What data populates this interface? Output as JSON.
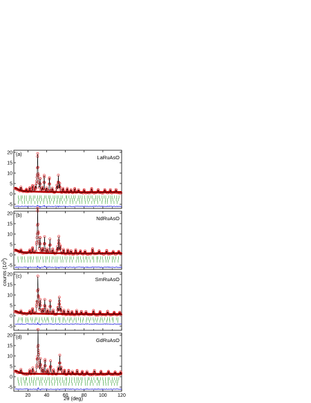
{
  "figure": {
    "xlabel": "2θ (deg)",
    "ylabel": "counts (10",
    "ylabel_exp": "3",
    "ylabel_close": ")",
    "xticks": [
      20,
      40,
      60,
      80,
      100,
      120
    ],
    "yticks": [
      -5,
      0,
      5,
      10,
      15,
      20
    ],
    "xlim": [
      5,
      120
    ],
    "ylim": [
      -7,
      21
    ],
    "colors": {
      "observed": "#e8282c",
      "calculated": "#000000",
      "fit_line": "#b40000",
      "reflections": "#2e9b2e",
      "difference": "#1a1ad8",
      "frame": "#000000"
    }
  },
  "chart_data": [
    {
      "type": "scatter",
      "panel": "(a)",
      "compound": "LaRuAsO",
      "xlim": [
        5,
        120
      ],
      "ylim": [
        -7,
        21
      ],
      "xlabel": "",
      "ylabel": "counts (10^3)",
      "background": [
        [
          7,
          2.6
        ],
        [
          12,
          1.3
        ],
        [
          20,
          0.9
        ],
        [
          40,
          0.6
        ],
        [
          80,
          0.5
        ],
        [
          120,
          0.6
        ]
      ],
      "peaks": [
        {
          "x": 12.6,
          "y": 2.0
        },
        {
          "x": 18.4,
          "y": 1.2
        },
        {
          "x": 22.0,
          "y": 2.0
        },
        {
          "x": 25.0,
          "y": 3.0
        },
        {
          "x": 28.0,
          "y": 2.5
        },
        {
          "x": 29.6,
          "y": 4.0
        },
        {
          "x": 30.4,
          "y": 17.0
        },
        {
          "x": 31.2,
          "y": 5.0
        },
        {
          "x": 33.0,
          "y": 6.0
        },
        {
          "x": 35.5,
          "y": 2.0
        },
        {
          "x": 37.4,
          "y": 8.0
        },
        {
          "x": 40.0,
          "y": 2.0
        },
        {
          "x": 43.0,
          "y": 7.0
        },
        {
          "x": 46.0,
          "y": 2.0
        },
        {
          "x": 51.0,
          "y": 3.0
        },
        {
          "x": 52.5,
          "y": 8.0
        },
        {
          "x": 54.0,
          "y": 4.0
        },
        {
          "x": 57.5,
          "y": 2.0
        },
        {
          "x": 62.0,
          "y": 2.0
        },
        {
          "x": 66.0,
          "y": 1.5
        },
        {
          "x": 70.0,
          "y": 2.0
        },
        {
          "x": 74.0,
          "y": 1.5
        },
        {
          "x": 80.0,
          "y": 1.5
        },
        {
          "x": 88.0,
          "y": 2.0
        },
        {
          "x": 95.0,
          "y": 1.5
        },
        {
          "x": 102.0,
          "y": 1.5
        },
        {
          "x": 108.0,
          "y": 1.5
        },
        {
          "x": 114.0,
          "y": 1.5
        }
      ],
      "reflection_rows": [
        {
          "y": -1.5,
          "count": 48
        },
        {
          "y": -2.8,
          "count": 40
        },
        {
          "y": -4.1,
          "count": 32
        }
      ],
      "difference_baseline": -6.0,
      "difference_spikes": [
        [
          30.4,
          0.5
        ],
        [
          33.0,
          -0.4
        ],
        [
          37.4,
          0.4
        ],
        [
          52.5,
          -0.4
        ]
      ]
    },
    {
      "type": "scatter",
      "panel": "(b)",
      "compound": "NdRuAsO",
      "xlim": [
        5,
        120
      ],
      "ylim": [
        -7,
        21
      ],
      "xlabel": "",
      "ylabel": "counts (10^3)",
      "background": [
        [
          7,
          2.2
        ],
        [
          12,
          1.0
        ],
        [
          20,
          0.8
        ],
        [
          40,
          0.5
        ],
        [
          80,
          0.4
        ],
        [
          120,
          0.5
        ]
      ],
      "peaks": [
        {
          "x": 12.6,
          "y": 1.5
        },
        {
          "x": 22.0,
          "y": 1.5
        },
        {
          "x": 25.0,
          "y": 2.5
        },
        {
          "x": 29.6,
          "y": 4.0
        },
        {
          "x": 30.4,
          "y": 20.0
        },
        {
          "x": 31.2,
          "y": 6.0
        },
        {
          "x": 33.0,
          "y": 7.0
        },
        {
          "x": 35.5,
          "y": 2.0
        },
        {
          "x": 37.8,
          "y": 8.0
        },
        {
          "x": 40.5,
          "y": 2.0
        },
        {
          "x": 43.5,
          "y": 7.0
        },
        {
          "x": 46.5,
          "y": 2.0
        },
        {
          "x": 51.5,
          "y": 3.0
        },
        {
          "x": 53.0,
          "y": 8.0
        },
        {
          "x": 54.5,
          "y": 3.5
        },
        {
          "x": 58.0,
          "y": 2.0
        },
        {
          "x": 62.5,
          "y": 2.0
        },
        {
          "x": 66.0,
          "y": 1.5
        },
        {
          "x": 71.0,
          "y": 2.0
        },
        {
          "x": 76.0,
          "y": 1.5
        },
        {
          "x": 81.0,
          "y": 1.5
        },
        {
          "x": 89.0,
          "y": 2.5
        },
        {
          "x": 96.0,
          "y": 1.5
        },
        {
          "x": 104.0,
          "y": 1.5
        },
        {
          "x": 111.0,
          "y": 1.2
        },
        {
          "x": 117.0,
          "y": 1.2
        }
      ],
      "reflection_rows": [
        {
          "y": -1.5,
          "count": 46
        },
        {
          "y": -3.0,
          "count": 34
        }
      ],
      "difference_baseline": -6.0,
      "difference_spikes": [
        [
          30.4,
          0.6
        ],
        [
          33.0,
          -0.4
        ],
        [
          37.8,
          0.4
        ],
        [
          53.0,
          -0.4
        ],
        [
          89.0,
          0.3
        ]
      ]
    },
    {
      "type": "scatter",
      "panel": "(c)",
      "compound": "SmRuAsO",
      "xlim": [
        5,
        120
      ],
      "ylim": [
        -7,
        21
      ],
      "xlabel": "",
      "ylabel": "counts (10^3)",
      "background": [
        [
          7,
          2.0
        ],
        [
          12,
          1.0
        ],
        [
          20,
          0.8
        ],
        [
          40,
          0.6
        ],
        [
          80,
          0.5
        ],
        [
          120,
          0.5
        ]
      ],
      "peaks": [
        {
          "x": 12.6,
          "y": 1.5
        },
        {
          "x": 22.0,
          "y": 1.5
        },
        {
          "x": 25.0,
          "y": 2.5
        },
        {
          "x": 29.6,
          "y": 4.0
        },
        {
          "x": 30.6,
          "y": 17.0
        },
        {
          "x": 31.4,
          "y": 5.0
        },
        {
          "x": 33.2,
          "y": 6.5
        },
        {
          "x": 35.8,
          "y": 2.0
        },
        {
          "x": 38.0,
          "y": 7.0
        },
        {
          "x": 40.8,
          "y": 2.0
        },
        {
          "x": 43.8,
          "y": 6.5
        },
        {
          "x": 47.0,
          "y": 2.0
        },
        {
          "x": 52.0,
          "y": 3.0
        },
        {
          "x": 53.5,
          "y": 8.0
        },
        {
          "x": 55.0,
          "y": 3.0
        },
        {
          "x": 58.5,
          "y": 2.0
        },
        {
          "x": 63.0,
          "y": 2.0
        },
        {
          "x": 67.0,
          "y": 1.5
        },
        {
          "x": 72.0,
          "y": 2.0
        },
        {
          "x": 77.0,
          "y": 1.5
        },
        {
          "x": 82.0,
          "y": 1.5
        },
        {
          "x": 90.0,
          "y": 2.0
        },
        {
          "x": 97.0,
          "y": 1.5
        },
        {
          "x": 105.0,
          "y": 1.5
        },
        {
          "x": 112.0,
          "y": 1.2
        },
        {
          "x": 118.0,
          "y": 1.2
        }
      ],
      "reflection_rows": [
        {
          "y": -1.5,
          "count": 44
        },
        {
          "y": -2.6,
          "count": 30
        }
      ],
      "difference_baseline": -4.0,
      "difference_spikes": [
        [
          30.6,
          0.5
        ],
        [
          33.2,
          -0.3
        ],
        [
          53.5,
          -0.3
        ]
      ]
    },
    {
      "type": "scatter",
      "panel": "(d)",
      "compound": "GdRuAsO",
      "xlim": [
        5,
        120
      ],
      "ylim": [
        -7,
        21
      ],
      "xlabel": "2θ (deg)",
      "ylabel": "counts (10^3)",
      "background": [
        [
          7,
          2.6
        ],
        [
          12,
          1.5
        ],
        [
          20,
          1.1
        ],
        [
          40,
          1.0
        ],
        [
          80,
          1.0
        ],
        [
          120,
          1.1
        ]
      ],
      "peaks": [
        {
          "x": 12.6,
          "y": 2.0
        },
        {
          "x": 22.0,
          "y": 2.0
        },
        {
          "x": 25.2,
          "y": 3.0
        },
        {
          "x": 29.8,
          "y": 5.0
        },
        {
          "x": 30.8,
          "y": 20.0
        },
        {
          "x": 31.6,
          "y": 6.0
        },
        {
          "x": 33.4,
          "y": 7.0
        },
        {
          "x": 36.0,
          "y": 2.5
        },
        {
          "x": 38.3,
          "y": 7.0
        },
        {
          "x": 41.0,
          "y": 2.0
        },
        {
          "x": 44.2,
          "y": 6.5
        },
        {
          "x": 47.5,
          "y": 2.0
        },
        {
          "x": 52.5,
          "y": 3.0
        },
        {
          "x": 54.0,
          "y": 9.0
        },
        {
          "x": 55.5,
          "y": 3.0
        },
        {
          "x": 59.0,
          "y": 2.0
        },
        {
          "x": 63.5,
          "y": 2.0
        },
        {
          "x": 67.5,
          "y": 1.5
        },
        {
          "x": 72.5,
          "y": 2.0
        },
        {
          "x": 78.0,
          "y": 1.5
        },
        {
          "x": 83.0,
          "y": 1.5
        },
        {
          "x": 91.0,
          "y": 2.0
        },
        {
          "x": 98.0,
          "y": 1.5
        },
        {
          "x": 106.0,
          "y": 1.5
        },
        {
          "x": 113.0,
          "y": 1.2
        },
        {
          "x": 119.0,
          "y": 1.2
        }
      ],
      "reflection_rows": [
        {
          "y": -1.0,
          "count": 46
        },
        {
          "y": -2.3,
          "count": 40
        },
        {
          "y": -3.6,
          "count": 34
        }
      ],
      "difference_baseline": -6.0,
      "difference_spikes": [
        [
          30.8,
          0.6
        ],
        [
          33.4,
          -0.4
        ],
        [
          54.0,
          -0.4
        ]
      ]
    }
  ]
}
